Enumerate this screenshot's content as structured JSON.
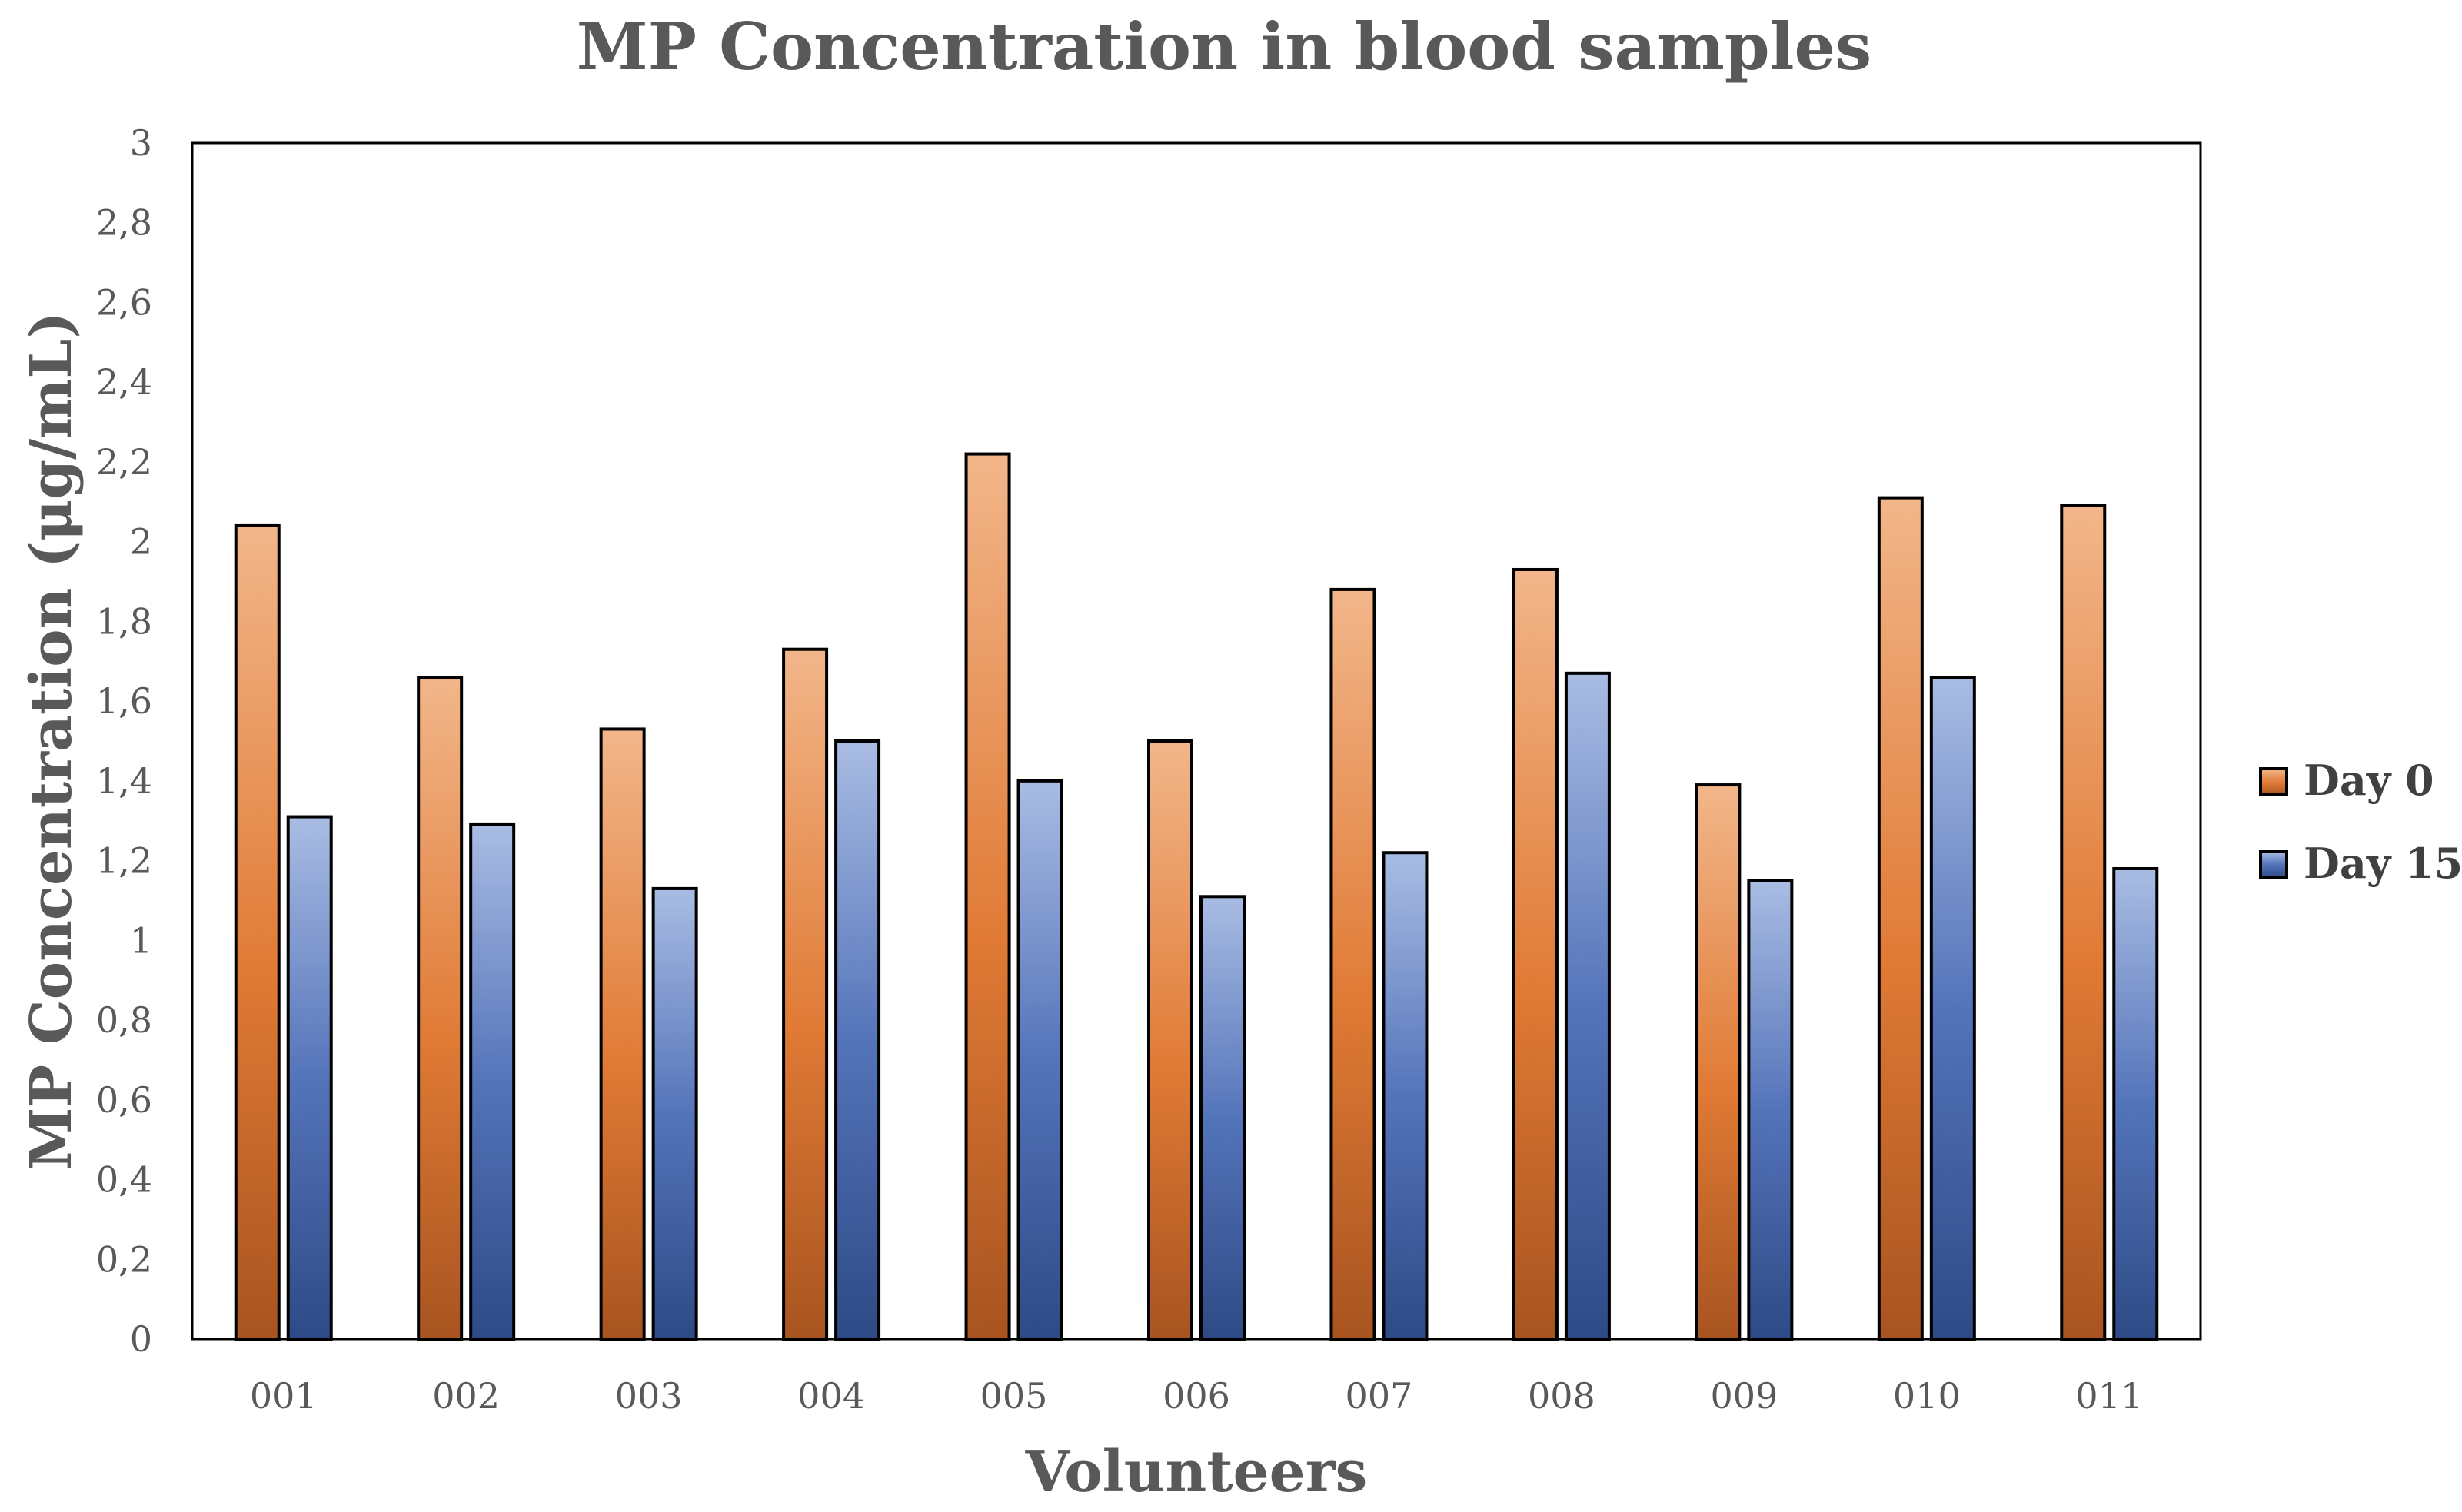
{
  "chart_data": {
    "type": "bar",
    "title": "MP Concentration in blood samples",
    "xlabel": "Volunteers",
    "ylabel": "MP Concentration  (μg/mL)",
    "ylim": [
      0,
      3
    ],
    "ytick_step": 0.2,
    "ytick_labels": [
      "0",
      "0,2",
      "0,4",
      "0,6",
      "0,8",
      "1",
      "1,2",
      "1,4",
      "1,6",
      "1,8",
      "2",
      "2,2",
      "2,4",
      "2,6",
      "2,8",
      "3"
    ],
    "categories": [
      "001",
      "002",
      "003",
      "004",
      "005",
      "006",
      "007",
      "008",
      "009",
      "010",
      "011"
    ],
    "series": [
      {
        "name": "Day 0",
        "color": "#E07A35",
        "values": [
          2.04,
          1.66,
          1.53,
          1.73,
          2.22,
          1.5,
          1.88,
          1.93,
          1.39,
          2.11,
          2.09
        ]
      },
      {
        "name": "Day 15",
        "color": "#4A6CB0",
        "values": [
          1.31,
          1.29,
          1.13,
          1.5,
          1.4,
          1.11,
          1.22,
          1.67,
          1.15,
          1.66,
          1.18
        ]
      }
    ],
    "grid": false,
    "legend_position": "right"
  }
}
